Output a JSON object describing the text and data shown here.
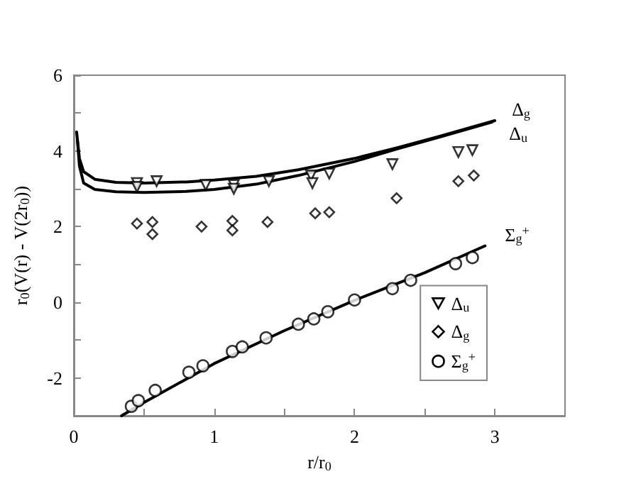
{
  "chart_data": {
    "type": "scatter",
    "xlabel": "r/r$_{0}$",
    "ylabel": "r$_{0}$(V(r) - V(2r$_{0}$))",
    "xlim": [
      0,
      3.5
    ],
    "xticks": [
      0,
      {
        "value": 0.5,
        "label": null
      },
      1,
      {
        "value": 1.5,
        "label": null
      },
      2,
      {
        "value": 2.5,
        "label": null
      },
      3
    ],
    "ylim": [
      -3,
      6
    ],
    "yticks": [
      -2,
      {
        "value": -1,
        "label": null
      },
      0,
      {
        "value": 1,
        "label": null
      },
      2,
      {
        "value": 3,
        "label": null
      },
      4,
      {
        "value": 5,
        "label": null
      },
      6
    ],
    "grid": false,
    "legend": "bottom right",
    "series": [
      {
        "type": "line",
        "name": "Δ$_{g}$",
        "color": "#000000",
        "marker": "none",
        "line_style": "solid",
        "x": [
          0.02,
          0.04,
          0.07,
          0.15,
          0.3,
          0.5,
          0.8,
          1.0,
          1.3,
          1.6,
          2.0,
          2.3,
          2.6,
          3.0
        ],
        "values": [
          4.5,
          3.8,
          3.45,
          3.25,
          3.17,
          3.15,
          3.18,
          3.23,
          3.33,
          3.5,
          3.8,
          4.08,
          4.38,
          4.8
        ]
      },
      {
        "type": "line",
        "name": "Δ$_{u}$",
        "color": "#000000",
        "marker": "none",
        "line_style": "solid",
        "x": [
          0.025,
          0.04,
          0.07,
          0.15,
          0.3,
          0.5,
          0.8,
          1.0,
          1.3,
          1.6,
          2.0,
          2.3,
          2.6,
          2.98
        ],
        "values": [
          4.3,
          3.6,
          3.15,
          2.98,
          2.92,
          2.9,
          2.93,
          2.98,
          3.12,
          3.35,
          3.72,
          4.05,
          4.36,
          4.76
        ]
      },
      {
        "type": "line",
        "name": "Σ$_{g}$$^{+}$",
        "color": "#000000",
        "marker": "none",
        "line_style": "solid",
        "x": [
          0.34,
          0.5,
          1.0,
          1.5,
          2.0,
          2.5,
          2.93
        ],
        "values": [
          -3,
          -2.65,
          -1.62,
          -0.75,
          0.05,
          0.78,
          1.49
        ]
      },
      {
        "type": "scatter",
        "name": "Δ$_{u}$",
        "color": "#000000",
        "marker": "triangle",
        "x": [
          0.45,
          0.45,
          0.59,
          0.94,
          1.14,
          1.14,
          1.39,
          1.69,
          1.7,
          1.82,
          2.27,
          2.74,
          2.84
        ],
        "values": [
          3.15,
          3.05,
          3.2,
          3.1,
          3.1,
          3.0,
          3.2,
          3.35,
          3.15,
          3.4,
          3.65,
          3.97,
          4.02
        ]
      },
      {
        "type": "scatter",
        "name": "Δ$_{g}$",
        "color": "#000000",
        "marker": "diamond",
        "x": [
          0.45,
          0.56,
          0.56,
          0.91,
          1.13,
          1.13,
          1.38,
          1.72,
          1.82,
          2.3,
          2.74,
          2.85
        ],
        "values": [
          2.08,
          2.12,
          1.8,
          2.0,
          2.15,
          1.9,
          2.12,
          2.35,
          2.38,
          2.75,
          3.2,
          3.35
        ]
      },
      {
        "type": "scatter",
        "name": "Σ$_{g}$$^{+}$",
        "color": "#000000",
        "marker": "circle",
        "x": [
          0.41,
          0.46,
          0.58,
          0.82,
          0.92,
          1.13,
          1.2,
          1.37,
          1.6,
          1.71,
          1.81,
          2.0,
          2.27,
          2.4,
          2.72,
          2.84
        ],
        "values": [
          -2.75,
          -2.6,
          -2.33,
          -1.85,
          -1.68,
          -1.3,
          -1.18,
          -0.94,
          -0.58,
          -0.44,
          -0.25,
          0.06,
          0.36,
          0.58,
          1.02,
          1.18
        ]
      }
    ]
  }
}
